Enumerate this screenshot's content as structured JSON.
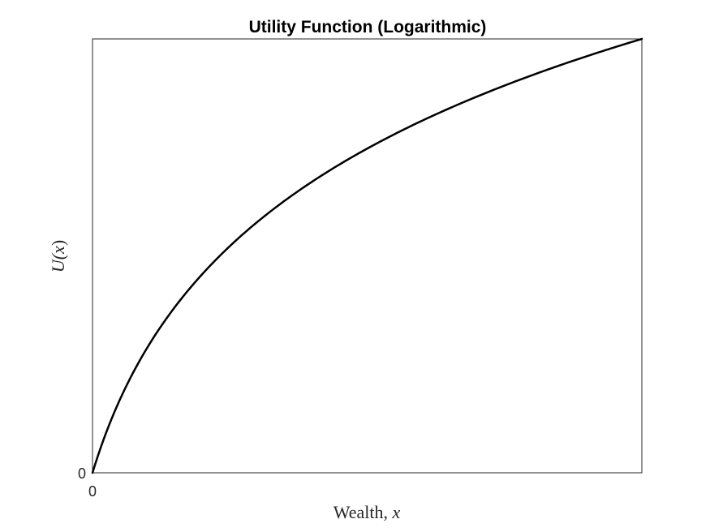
{
  "chart_data": {
    "type": "line",
    "title": "Utility Function (Logarithmic)",
    "xlabel_text": "Wealth, ",
    "xlabel_var": "x",
    "ylabel_text": "U(",
    "ylabel_var": "x",
    "ylabel_close": ")",
    "x_ticks": [
      {
        "value": 0,
        "label": "0"
      }
    ],
    "y_ticks": [
      {
        "value": 0,
        "label": "0"
      }
    ],
    "xlim": [
      0,
      10
    ],
    "ylim": [
      0,
      2.3979
    ],
    "function": "ln(1 + x)",
    "grid": false,
    "line_color": "#000000",
    "series": [
      {
        "x": [
          0,
          0.5,
          1,
          1.5,
          2,
          2.5,
          3,
          3.5,
          4,
          4.5,
          5,
          5.5,
          6,
          6.5,
          7,
          7.5,
          8,
          8.5,
          9,
          9.5,
          10
        ],
        "values": [
          0,
          0.405,
          0.693,
          0.916,
          1.099,
          1.253,
          1.386,
          1.504,
          1.609,
          1.705,
          1.792,
          1.872,
          1.946,
          2.015,
          2.079,
          2.14,
          2.197,
          2.251,
          2.303,
          2.351,
          2.398
        ]
      }
    ]
  }
}
